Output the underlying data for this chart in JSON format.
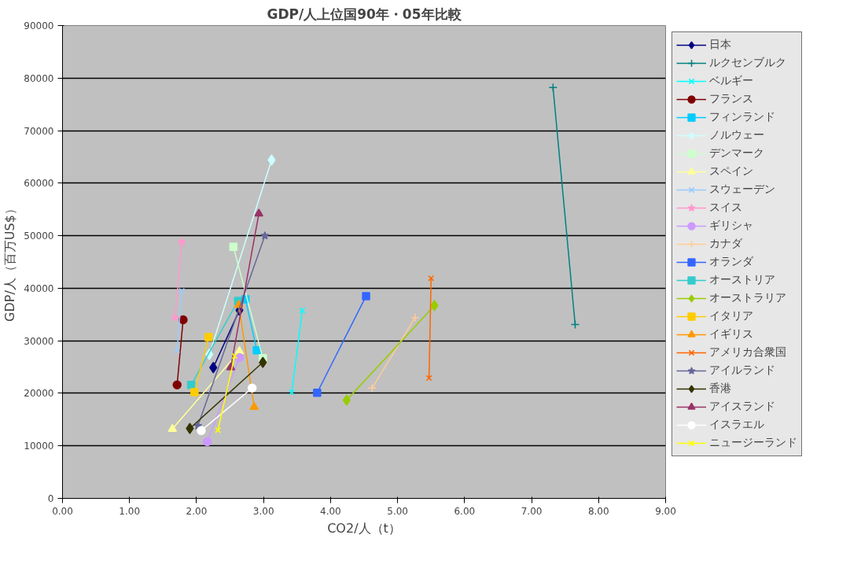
{
  "chart_data": {
    "type": "line",
    "title": "GDP/人上位国90年・05年比較",
    "xlabel": "CO2/人（t）",
    "ylabel": "GDP/人（百万US$）",
    "xlim": [
      0,
      9
    ],
    "ylim": [
      0,
      90000
    ],
    "xticks": [
      {
        "value": 0,
        "label": "0.00"
      },
      {
        "value": 1,
        "label": "1.00"
      },
      {
        "value": 2,
        "label": "2.00"
      },
      {
        "value": 3,
        "label": "3.00"
      },
      {
        "value": 4,
        "label": "4.00"
      },
      {
        "value": 5,
        "label": "5.00"
      },
      {
        "value": 6,
        "label": "6.00"
      },
      {
        "value": 7,
        "label": "7.00"
      },
      {
        "value": 8,
        "label": "8.00"
      },
      {
        "value": 9,
        "label": "9.00"
      }
    ],
    "yticks": [
      0,
      10000,
      20000,
      30000,
      40000,
      50000,
      60000,
      70000,
      80000,
      90000
    ],
    "grid": "y",
    "legend": "right",
    "line_style": "solid",
    "series": [
      {
        "name": "日本",
        "color": "#000080",
        "marker": "diamond",
        "x": [
          2.25,
          2.64
        ],
        "values": [
          24900,
          35800
        ]
      },
      {
        "name": "ルクセンブルク",
        "color": "#008080",
        "marker": "cross",
        "x": [
          7.65,
          7.32
        ],
        "values": [
          33100,
          78200
        ]
      },
      {
        "name": "ベルギー",
        "color": "#00ffff",
        "marker": "x",
        "x": [
          3.42,
          3.58
        ],
        "values": [
          20200,
          35800
        ]
      },
      {
        "name": "フランス",
        "color": "#800000",
        "marker": "circle",
        "x": [
          1.71,
          1.8
        ],
        "values": [
          21600,
          34000
        ]
      },
      {
        "name": "フィンランド",
        "color": "#00ccff",
        "marker": "square",
        "x": [
          2.9,
          2.73
        ],
        "values": [
          28200,
          37900
        ]
      },
      {
        "name": "ノルウェー",
        "color": "#ccffff",
        "marker": "diamond",
        "x": [
          2.19,
          3.12
        ],
        "values": [
          27400,
          64400
        ]
      },
      {
        "name": "デンマーク",
        "color": "#ccffcc",
        "marker": "square",
        "x": [
          2.99,
          2.55
        ],
        "values": [
          26700,
          47900
        ]
      },
      {
        "name": "スペイン",
        "color": "#ffff99",
        "marker": "triangle",
        "x": [
          1.64,
          2.64
        ],
        "values": [
          13200,
          28000
        ]
      },
      {
        "name": "スウェーデン",
        "color": "#99ccff",
        "marker": "x",
        "x": [
          1.71,
          1.78
        ],
        "values": [
          28200,
          39500
        ]
      },
      {
        "name": "スイス",
        "color": "#ff99cc",
        "marker": "star",
        "x": [
          1.68,
          1.78
        ],
        "values": [
          34400,
          48800
        ]
      },
      {
        "name": "ギリシャ",
        "color": "#cc99ff",
        "marker": "circle",
        "x": [
          2.16,
          2.64
        ],
        "values": [
          10800,
          26800
        ]
      },
      {
        "name": "カナダ",
        "color": "#ffcc99",
        "marker": "cross",
        "x": [
          4.62,
          5.26
        ],
        "values": [
          21000,
          34400
        ]
      },
      {
        "name": "オランダ",
        "color": "#3366ff",
        "marker": "square",
        "x": [
          3.8,
          4.53
        ],
        "values": [
          20100,
          38500
        ]
      },
      {
        "name": "オーストリア",
        "color": "#33cccc",
        "marker": "square",
        "x": [
          1.92,
          2.62
        ],
        "values": [
          21600,
          37600
        ]
      },
      {
        "name": "オーストラリア",
        "color": "#99cc00",
        "marker": "diamond",
        "x": [
          4.24,
          5.55
        ],
        "values": [
          18700,
          36700
        ]
      },
      {
        "name": "イタリア",
        "color": "#ffcc00",
        "marker": "square",
        "x": [
          1.97,
          2.18
        ],
        "values": [
          20200,
          30700
        ]
      },
      {
        "name": "イギリス",
        "color": "#ff9900",
        "marker": "triangle",
        "x": [
          2.86,
          2.63
        ],
        "values": [
          17400,
          36800
        ]
      },
      {
        "name": "アメリカ合衆国",
        "color": "#ff6600",
        "marker": "x",
        "x": [
          5.47,
          5.5
        ],
        "values": [
          22900,
          41900
        ]
      },
      {
        "name": "アイルランド",
        "color": "#666699",
        "marker": "star",
        "x": [
          2.02,
          3.02
        ],
        "values": [
          13800,
          50000
        ]
      },
      {
        "name": "香港",
        "color": "#333300",
        "marker": "diamond",
        "x": [
          1.9,
          2.99
        ],
        "values": [
          13300,
          25900
        ]
      },
      {
        "name": "アイスランド",
        "color": "#993366",
        "marker": "triangle",
        "x": [
          2.51,
          2.93
        ],
        "values": [
          24900,
          54200
        ]
      },
      {
        "name": "イスラエル",
        "color": "#ffffff",
        "marker": "circle",
        "x": [
          2.07,
          2.83
        ],
        "values": [
          12900,
          21000
        ]
      },
      {
        "name": "ニュージーランド",
        "color": "#ffff00",
        "marker": "x",
        "x": [
          2.32,
          2.57
        ],
        "values": [
          13000,
          27100
        ]
      }
    ]
  }
}
